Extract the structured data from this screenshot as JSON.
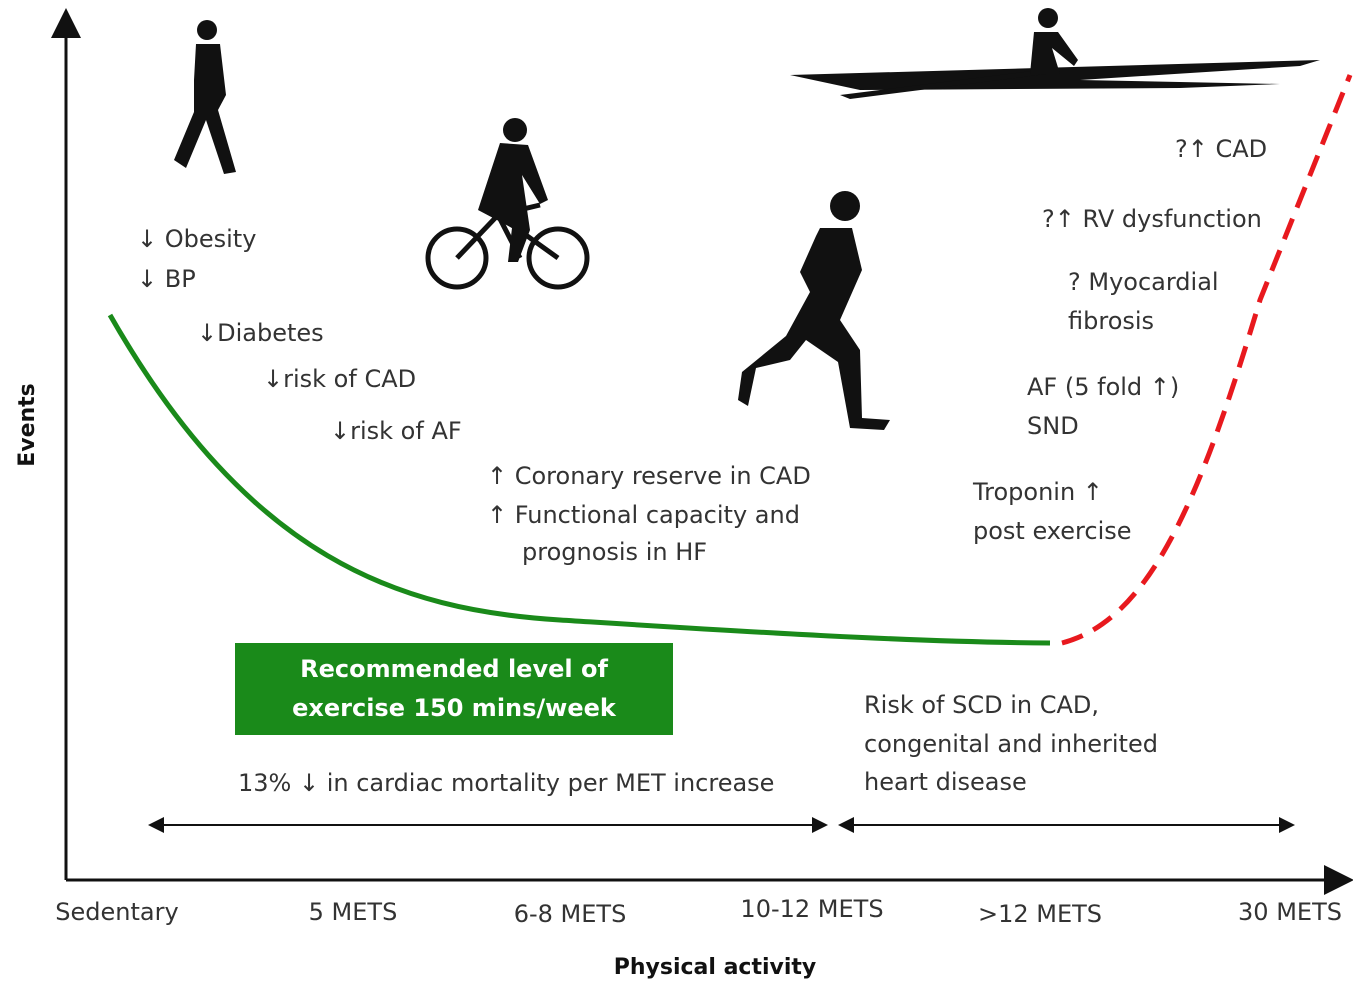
{
  "axes": {
    "y_label": "Events",
    "x_label": "Physical activity",
    "x_labels": [
      "Sedentary",
      "5 METS",
      "6-8 METS",
      "10-12 METS",
      ">12 METS",
      "30 METS"
    ]
  },
  "benefits": [
    "↓ Obesity",
    "↓ BP",
    "↓Diabetes",
    "↓risk of CAD",
    "↓risk of AF"
  ],
  "cardiac": [
    "↑ Coronary reserve in CAD",
    "↑ Functional capacity and",
    "prognosis in HF"
  ],
  "risks": [
    "?↑ CAD",
    "?↑ RV dysfunction",
    "? Myocardial",
    "fibrosis",
    "AF (5 fold ↑)",
    "SND",
    "Troponin ↑",
    "post exercise"
  ],
  "recommendation": [
    "Recommended level of",
    "exercise 150 mins/week"
  ],
  "mortality": "13% ↓ in cardiac mortality per MET increase",
  "scd_risk": [
    "Risk of SCD in CAD,",
    "congenital and inherited",
    "heart disease"
  ]
}
